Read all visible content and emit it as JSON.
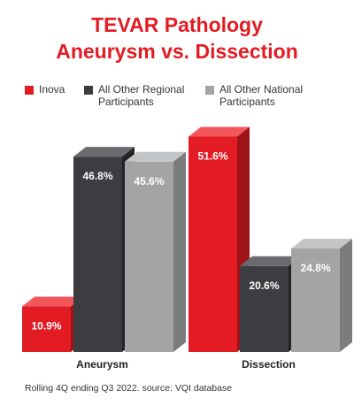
{
  "chart_data": {
    "type": "bar",
    "title_line1": "TEVAR Pathology",
    "title_line2": "Aneurysm vs. Dissection",
    "categories": [
      "Aneurysm",
      "Dissection"
    ],
    "series": [
      {
        "name": "Inova",
        "values": [
          10.9,
          51.6
        ],
        "labels": [
          "10.9%",
          "51.6%"
        ]
      },
      {
        "name": "All Other Regional Participants",
        "values": [
          46.8,
          20.6
        ],
        "labels": [
          "46.8%",
          "20.6%"
        ]
      },
      {
        "name": "All Other National Participants",
        "values": [
          45.6,
          24.8
        ],
        "labels": [
          "45.6%",
          "24.8%"
        ]
      }
    ],
    "ylim": [
      0,
      55
    ],
    "legend_position": "top",
    "grid": false,
    "footnote": "Rolling 4Q ending Q3 2022. source: VQI database"
  },
  "colors": {
    "title": "#e31b23",
    "series_front": [
      "#e31b23",
      "#3c3d40",
      "#a3a4a6"
    ],
    "series_top": [
      "#f2565b",
      "#6a6b6e",
      "#c4c5c7"
    ],
    "series_side": [
      "#9e1218",
      "#222325",
      "#7b7c7e"
    ]
  }
}
